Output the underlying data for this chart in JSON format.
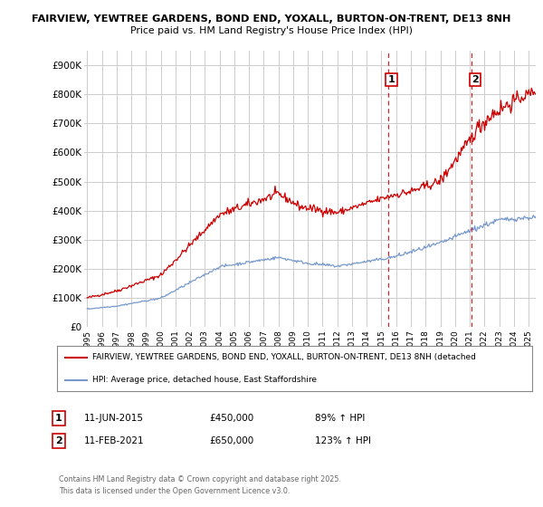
{
  "title_line1": "FAIRVIEW, YEWTREE GARDENS, BOND END, YOXALL, BURTON-ON-TRENT, DE13 8NH",
  "title_line2": "Price paid vs. HM Land Registry's House Price Index (HPI)",
  "background_color": "#ffffff",
  "plot_bg_color": "#ffffff",
  "grid_color": "#cccccc",
  "red_line_color": "#cc0000",
  "blue_line_color": "#7799cc",
  "dashed_line_color": "#cc0000",
  "ylim": [
    0,
    950000
  ],
  "yticks": [
    0,
    100000,
    200000,
    300000,
    400000,
    500000,
    600000,
    700000,
    800000,
    900000
  ],
  "ytick_labels": [
    "£0",
    "£100K",
    "£200K",
    "£300K",
    "£400K",
    "£500K",
    "£600K",
    "£700K",
    "£800K",
    "£900K"
  ],
  "xmin_year": 1995,
  "xmax_year": 2025.5,
  "xtick_years": [
    1995,
    1996,
    1997,
    1998,
    1999,
    2000,
    2001,
    2002,
    2003,
    2004,
    2005,
    2006,
    2007,
    2008,
    2009,
    2010,
    2011,
    2012,
    2013,
    2014,
    2015,
    2016,
    2017,
    2018,
    2019,
    2020,
    2021,
    2022,
    2023,
    2024,
    2025
  ],
  "marker1_year": 2015.44,
  "marker1_label": "1",
  "marker1_price": 450000,
  "marker1_date": "11-JUN-2015",
  "marker1_pct": "89% ↑ HPI",
  "marker2_year": 2021.11,
  "marker2_label": "2",
  "marker2_price": 650000,
  "marker2_date": "11-FEB-2021",
  "marker2_pct": "123% ↑ HPI",
  "legend_red": "FAIRVIEW, YEWTREE GARDENS, BOND END, YOXALL, BURTON-ON-TRENT, DE13 8NH (detached",
  "legend_blue": "HPI: Average price, detached house, East Staffordshire",
  "footnote_line1": "Contains HM Land Registry data © Crown copyright and database right 2025.",
  "footnote_line2": "This data is licensed under the Open Government Licence v3.0."
}
